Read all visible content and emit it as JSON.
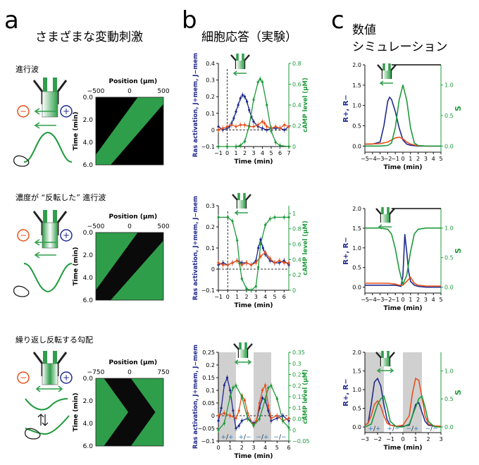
{
  "panel_letters": [
    "a",
    "b",
    "c"
  ],
  "headings": {
    "a": "さまざまな変動刺激",
    "b": "細胞応答（実験）",
    "c_line1": "数値",
    "c_line2": "シミュレーション"
  },
  "rows": [
    {
      "label": "進行波",
      "sign_left": "−",
      "sign_right": "+"
    },
    {
      "label": "濃度が “反転した” 進行波",
      "sign_left": "−",
      "sign_right": "+"
    },
    {
      "label": "繰り返し反転する勾配",
      "sign_left": "−",
      "sign_right": "+"
    }
  ],
  "kymographs": [
    {
      "xlabel": "Position (μm)",
      "xticks": [
        "−500",
        "0",
        "500"
      ],
      "ylabel": "Time (min)",
      "yticks": [
        "0.0",
        "2.0",
        "4.0",
        "6.0"
      ]
    },
    {
      "xlabel": "Position (μm)",
      "xticks": [
        "−500",
        "0",
        "500"
      ],
      "ylabel": "Time (min)",
      "yticks": [
        "0.0",
        "2.0",
        "4.0",
        "6.0"
      ]
    },
    {
      "xlabel": "Position (μm)",
      "xticks": [
        "−750",
        "0",
        "750"
      ],
      "ylabel": "Time (min)",
      "yticks": [
        "0.0",
        "2.0",
        "4.0",
        "6.0"
      ]
    }
  ],
  "legend_labels": {
    "alternation": [
      "+/+",
      "+/−",
      "−/+",
      "−/−"
    ]
  },
  "colors": {
    "ras_plus": "#1f2a8c",
    "ras_minus": "#e8501c",
    "camp": "#1d9a3a",
    "shade": "#d0d0d0"
  },
  "chart_data": [
    {
      "type": "line",
      "title": "",
      "xlabel": "Time (min)",
      "ylabel": "Ras activation, J+mem, J−mem",
      "y2label": "cAMP level (μM)",
      "xlim": [
        -1,
        7
      ],
      "ylim": [
        -0.1,
        0.4
      ],
      "y2lim": [
        0,
        0.8
      ],
      "xticks": [
        "−1",
        "0",
        "1",
        "2",
        "3",
        "4",
        "5",
        "6",
        "7"
      ],
      "yticks": [
        "−0.1",
        "0",
        "0.1",
        "0.2",
        "0.3",
        "0.4"
      ],
      "y2ticks": [
        "0",
        "0.2",
        "0.4",
        "0.6",
        "0.8"
      ],
      "series": [
        {
          "key": "plus",
          "axis": "y",
          "x": [
            -1,
            -0.5,
            0,
            0.25,
            0.5,
            0.75,
            1,
            1.25,
            1.5,
            1.75,
            2,
            2.25,
            2.5,
            2.75,
            3,
            3.5,
            4,
            4.5,
            5,
            5.5,
            6,
            6.5,
            7
          ],
          "y": [
            0.02,
            0,
            0.01,
            0.02,
            0.04,
            0.07,
            0.11,
            0.15,
            0.19,
            0.21,
            0.2,
            0.17,
            0.12,
            0.08,
            0.05,
            0.02,
            0.01,
            0,
            0.01,
            0.01,
            0.01,
            0,
            0.02
          ]
        },
        {
          "key": "minus",
          "axis": "y",
          "x": [
            -1,
            -0.5,
            0,
            0.5,
            1,
            1.5,
            2,
            2.5,
            3,
            3.5,
            4,
            4.25,
            4.5,
            5,
            5.5,
            6,
            6.5,
            7
          ],
          "y": [
            0,
            0.01,
            0.02,
            0.03,
            0.02,
            0.03,
            0.03,
            0.02,
            0.02,
            0.03,
            0.05,
            0.04,
            0.02,
            0.01,
            0.02,
            0.01,
            0.03,
            0.02
          ]
        },
        {
          "key": "camp",
          "axis": "y2",
          "x": [
            -1,
            0,
            1,
            1.5,
            2,
            2.5,
            3,
            3.5,
            3.75,
            4,
            4.5,
            5,
            5.5,
            6,
            7
          ],
          "y": [
            0,
            0,
            0,
            0.01,
            0.05,
            0.2,
            0.45,
            0.62,
            0.65,
            0.62,
            0.4,
            0.15,
            0.04,
            0.01,
            0
          ]
        }
      ]
    },
    {
      "type": "line",
      "title": "",
      "xlabel": "Time (min)",
      "ylabel": "Ras activation, J+mem, J−mem",
      "y2label": "cAMP level (μM)",
      "xlim": [
        -1,
        6.5
      ],
      "ylim": [
        -0.1,
        0.3
      ],
      "y2lim": [
        0,
        1.1
      ],
      "xticks": [
        "−1",
        "0",
        "1",
        "2",
        "3",
        "4",
        "5",
        "6"
      ],
      "yticks": [
        "−0.1",
        "0",
        "0.1",
        "0.2",
        "0.3"
      ],
      "y2ticks": [
        "0",
        "0.2",
        "0.4",
        "0.6",
        "0.8",
        "1"
      ],
      "series": [
        {
          "key": "plus",
          "axis": "y",
          "x": [
            -1,
            -0.5,
            0,
            0.5,
            1,
            1.5,
            2,
            2.5,
            3,
            3.25,
            3.5,
            3.75,
            4,
            4.5,
            5,
            5.5,
            6,
            6.5
          ],
          "y": [
            0.02,
            0.03,
            0.02,
            0.03,
            0.04,
            0.03,
            0.03,
            0.02,
            0.04,
            0.1,
            0.14,
            0.1,
            0.07,
            0.04,
            0.03,
            0.03,
            0.04,
            0.02
          ]
        },
        {
          "key": "minus",
          "axis": "y",
          "x": [
            -1,
            -0.5,
            0,
            0.5,
            1,
            1.5,
            2,
            2.5,
            3,
            3.5,
            4,
            4.5,
            5,
            5.5,
            6,
            6.5
          ],
          "y": [
            0.03,
            0.02,
            0.02,
            0.03,
            0.04,
            0.02,
            0.03,
            0.02,
            0.03,
            0.06,
            0.08,
            0.05,
            0.03,
            0.04,
            0.03,
            0.03
          ]
        },
        {
          "key": "camp",
          "axis": "y2",
          "x": [
            -1,
            0,
            0.5,
            1,
            1.25,
            1.5,
            2,
            2.5,
            3,
            3.25,
            3.5,
            4,
            4.5,
            5,
            6,
            6.5
          ],
          "y": [
            0.95,
            0.95,
            0.9,
            0.65,
            0.35,
            0.15,
            0.02,
            0,
            0.05,
            0.3,
            0.6,
            0.85,
            0.93,
            0.95,
            0.95,
            0.95
          ]
        }
      ]
    },
    {
      "type": "line",
      "title": "",
      "xlabel": "Time (min)",
      "ylabel": "Ras activation, J+mem, J−mem",
      "y2label": "cAMP level (μM)",
      "xlim": [
        0,
        6
      ],
      "ylim": [
        -0.1,
        0.25
      ],
      "y2lim": [
        -0.05,
        0.35
      ],
      "xticks": [
        "0",
        "1",
        "2",
        "3",
        "4",
        "5",
        "6"
      ],
      "yticks": [
        "−0.1",
        "−0.05",
        "0",
        "0.05",
        "0.1",
        "0.15",
        "0.2",
        "0.25"
      ],
      "y2ticks": [
        "−0.05",
        "0",
        "0.05",
        "0.1",
        "0.15",
        "0.2",
        "0.25",
        "0.3",
        "0.35"
      ],
      "shaded": [
        [
          0,
          1.5
        ],
        [
          3,
          4.5
        ]
      ],
      "series": [
        {
          "key": "plus",
          "axis": "y",
          "x": [
            0,
            0.25,
            0.5,
            0.75,
            1,
            1.25,
            1.5,
            1.75,
            2,
            2.5,
            3,
            3.25,
            3.5,
            3.75,
            4,
            4.25,
            4.5,
            5,
            5.5,
            6
          ],
          "y": [
            -0.02,
            0.03,
            0.12,
            0.15,
            0.1,
            0.02,
            -0.05,
            -0.04,
            -0.02,
            -0.01,
            -0.03,
            -0.02,
            0.03,
            0.07,
            0.06,
            0.02,
            -0.02,
            -0.01,
            0,
            -0.02
          ]
        },
        {
          "key": "minus",
          "axis": "y",
          "x": [
            0,
            0.5,
            1,
            1.5,
            1.75,
            2,
            2.25,
            2.5,
            3,
            3.25,
            3.5,
            3.75,
            4,
            4.25,
            4.5,
            5,
            5.5,
            6
          ],
          "y": [
            0,
            0.01,
            0,
            -0.01,
            0.02,
            0.08,
            0.06,
            0.01,
            -0.04,
            -0.02,
            0.05,
            0.1,
            0.12,
            0.04,
            -0.01,
            0,
            -0.02,
            -0.01
          ]
        },
        {
          "key": "camp",
          "axis": "y2",
          "x": [
            0,
            0.5,
            1,
            1.25,
            1.5,
            2,
            2.5,
            3,
            3.5,
            4,
            4.25,
            4.5,
            5,
            5.5,
            6
          ],
          "y": [
            0,
            0.03,
            0.15,
            0.19,
            0.2,
            0.15,
            0.05,
            0.02,
            0.05,
            0.14,
            0.19,
            0.2,
            0.14,
            0.04,
            0.01
          ]
        }
      ]
    },
    {
      "type": "line",
      "title": "",
      "xlabel": "Time (min)",
      "ylabel": "R+, R−",
      "y2label": "S",
      "xlim": [
        -5,
        5
      ],
      "ylim": [
        -0.15,
        2.0
      ],
      "y2lim": [
        -0.1,
        1.33
      ],
      "xticks": [
        "−5",
        "−4",
        "−3",
        "−2",
        "−1",
        "0",
        "1",
        "2",
        "3",
        "4",
        "5"
      ],
      "yticks": [
        "0.0",
        "0.5",
        "1.0",
        "1.5",
        "2.0"
      ],
      "y2ticks": [
        "0.0",
        "0.5",
        "1.0"
      ],
      "series": [
        {
          "key": "plus",
          "axis": "y",
          "x": [
            -5,
            -4,
            -3,
            -2.5,
            -2,
            -1.75,
            -1.5,
            -1,
            -0.5,
            0,
            0.5,
            1,
            2,
            3,
            4,
            5
          ],
          "y": [
            0.05,
            0.05,
            0.1,
            0.5,
            1.1,
            1.2,
            1.15,
            0.85,
            0.45,
            0.15,
            0.05,
            0.02,
            0,
            0,
            0,
            0
          ]
        },
        {
          "key": "minus",
          "axis": "y",
          "x": [
            -5,
            -3,
            -2,
            -1.5,
            -1,
            -0.5,
            0,
            0.5,
            1,
            2,
            3,
            5
          ],
          "y": [
            0.05,
            0.06,
            0.1,
            0.15,
            0.2,
            0.22,
            0.18,
            0.1,
            0.05,
            0.01,
            0,
            0
          ]
        },
        {
          "key": "camp",
          "axis": "y2",
          "x": [
            -5,
            -3,
            -2,
            -1.5,
            -1,
            -0.5,
            0,
            0.5,
            1,
            1.5,
            2,
            3,
            5
          ],
          "y": [
            0,
            0,
            0.01,
            0.05,
            0.3,
            0.75,
            1.0,
            0.75,
            0.3,
            0.05,
            0.01,
            0,
            0
          ]
        }
      ]
    },
    {
      "type": "line",
      "title": "",
      "xlabel": "Time (min)",
      "ylabel": "R+, R−",
      "y2label": "S",
      "xlim": [
        -5,
        5
      ],
      "ylim": [
        -0.15,
        2.0
      ],
      "y2lim": [
        -0.1,
        1.33
      ],
      "xticks": [
        "−5",
        "−4",
        "−3",
        "−2",
        "−1",
        "0",
        "1",
        "2",
        "3",
        "4",
        "5"
      ],
      "yticks": [
        "0.0",
        "0.5",
        "1.0",
        "1.5",
        "2.0"
      ],
      "y2ticks": [
        "0.0",
        "0.5",
        "1.0"
      ],
      "series": [
        {
          "key": "plus",
          "axis": "y",
          "x": [
            -5,
            -3,
            -2,
            -1,
            -0.5,
            -0.25,
            0,
            0.25,
            0.5,
            0.75,
            1,
            1.5,
            2,
            3,
            5
          ],
          "y": [
            0.05,
            0.05,
            0.05,
            0.05,
            0.03,
            0.02,
            0.3,
            1.35,
            0.9,
            0.4,
            0.15,
            0.05,
            0.02,
            0,
            0
          ]
        },
        {
          "key": "minus",
          "axis": "y",
          "x": [
            -5,
            -3,
            -2,
            -1,
            -0.5,
            0,
            0.5,
            1,
            1.5,
            2,
            3,
            5
          ],
          "y": [
            0.1,
            0.1,
            0.1,
            0.08,
            0.05,
            0.05,
            0.15,
            0.25,
            0.1,
            0.05,
            0.03,
            0.03
          ]
        },
        {
          "key": "camp",
          "axis": "y2",
          "x": [
            -5,
            -3,
            -2,
            -1.5,
            -1,
            -0.5,
            0,
            0.5,
            1,
            1.5,
            2,
            3,
            5
          ],
          "y": [
            1,
            1,
            0.98,
            0.9,
            0.65,
            0.3,
            0.05,
            0.2,
            0.6,
            0.9,
            0.98,
            1,
            1
          ]
        }
      ]
    },
    {
      "type": "line",
      "title": "",
      "xlabel": "Time (min)",
      "ylabel": "R+, R−",
      "y2label": "S",
      "xlim": [
        -3,
        3
      ],
      "ylim": [
        -0.15,
        2.0
      ],
      "y2lim": [
        -0.1,
        1.33
      ],
      "xticks": [
        "−3",
        "−2",
        "−1",
        "0",
        "1",
        "2",
        "3"
      ],
      "yticks": [
        "0.0",
        "0.5",
        "1.0",
        "1.5",
        "2.0"
      ],
      "y2ticks": [
        "0.0",
        "0.5",
        "1.0"
      ],
      "shaded": [
        [
          -3,
          -1.5
        ],
        [
          0,
          1.5
        ]
      ],
      "series": [
        {
          "key": "plus",
          "axis": "y",
          "x": [
            -3,
            -2.75,
            -2.5,
            -2.25,
            -2,
            -1.75,
            -1.5,
            -1.25,
            -1,
            -0.5,
            0,
            0.5,
            0.75,
            1,
            1.25,
            1.5,
            1.75,
            2,
            2.5,
            3
          ],
          "y": [
            0.05,
            0.1,
            0.6,
            1.2,
            1.3,
            1.1,
            0.6,
            0.2,
            0.05,
            0.02,
            0.02,
            0.05,
            0.3,
            0.6,
            0.65,
            0.4,
            0.15,
            0.05,
            0.02,
            0.02
          ]
        },
        {
          "key": "minus",
          "axis": "y",
          "x": [
            -3,
            -2.75,
            -2.5,
            -2.25,
            -2,
            -1.75,
            -1.5,
            -1.25,
            -1,
            -0.5,
            0,
            0.5,
            0.75,
            1,
            1.25,
            1.5,
            1.75,
            2,
            2.5,
            3
          ],
          "y": [
            0.05,
            0.1,
            0.3,
            0.6,
            0.7,
            0.55,
            0.3,
            0.1,
            0.05,
            0.02,
            0.05,
            0.3,
            0.9,
            1.3,
            1.25,
            0.8,
            0.3,
            0.08,
            0.03,
            0.02
          ]
        },
        {
          "key": "camp",
          "axis": "y2",
          "x": [
            -3,
            -2.5,
            -2,
            -1.75,
            -1.5,
            -1.25,
            -1,
            -0.5,
            0,
            0.5,
            1,
            1.25,
            1.5,
            1.75,
            2,
            2.5,
            3
          ],
          "y": [
            0,
            0.05,
            0.4,
            0.5,
            0.55,
            0.35,
            0.1,
            0,
            0,
            0.05,
            0.35,
            0.5,
            0.55,
            0.35,
            0.1,
            0,
            0
          ]
        }
      ]
    }
  ]
}
